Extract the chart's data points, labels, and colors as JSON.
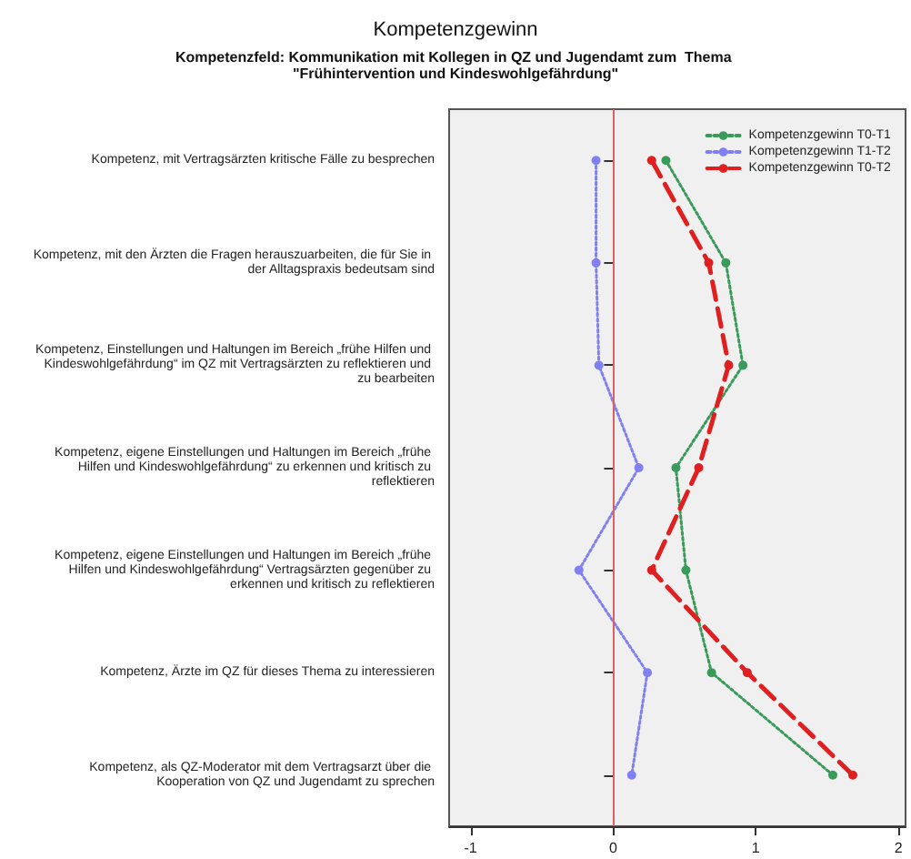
{
  "chart_data": {
    "type": "line",
    "orientation": "horizontal",
    "title": "Kompetenzgewinn",
    "subtitle": "Kompetenzfeld: Kommunikation mit Kollegen in QZ und Jugendamt zum  Thema \"Frühintervention und Kindeswohlgefährdung\"",
    "categories": [
      "Kompetenz, mit Vertragsärzten kritische Fälle zu besprechen",
      "Kompetenz, mit den Ärzten die Fragen herauszuarbeiten, die für Sie in der Alltagspraxis bedeutsam sind",
      "Kompetenz, Einstellungen und Haltungen im Bereich „frühe Hilfen und Kindeswohlgefährdung“ im QZ mit Vertragsärzten zu reflektieren und zu bearbeiten",
      "Kompetenz, eigene Einstellungen und Haltungen im Bereich „frühe Hilfen und Kindeswohlgefährdung“ zu erkennen und kritisch zu reflektieren",
      "Kompetenz, eigene Einstellungen und Haltungen im Bereich „frühe Hilfen und Kindeswohlgefährdung“ Vertragsärzten gegenüber zu erkennen und kritisch zu reflektieren",
      "Kompetenz, Ärzte im QZ für dieses Thema zu interessieren",
      "Kompetenz, als QZ-Moderator mit dem Vertragsarzt über die Kooperation von QZ und Jugendamt zu sprechen"
    ],
    "series": [
      {
        "name": "Kompetenzgewinn T0-T1",
        "color": "#3a9a5a",
        "line_style": "dotted",
        "values": [
          0.37,
          0.79,
          0.91,
          0.44,
          0.51,
          0.69,
          1.54
        ]
      },
      {
        "name": "Kompetenzgewinn T1-T2",
        "color": "#8080f0",
        "line_style": "dotted",
        "values": [
          -0.12,
          -0.12,
          -0.1,
          0.18,
          -0.24,
          0.24,
          0.13
        ]
      },
      {
        "name": "Kompetenzgewinn T0-T2",
        "color": "#e02020",
        "line_style": "dashed",
        "values": [
          0.27,
          0.67,
          0.81,
          0.6,
          0.27,
          0.94,
          1.68
        ]
      }
    ],
    "xlim": [
      -1.15,
      2.05
    ],
    "xticks": [
      -1,
      0,
      1,
      2
    ],
    "ref_lines": [
      {
        "axis": "x",
        "value": 0,
        "color": "#e06060"
      }
    ],
    "marker": "circle",
    "legend": "top right",
    "grid": false
  }
}
